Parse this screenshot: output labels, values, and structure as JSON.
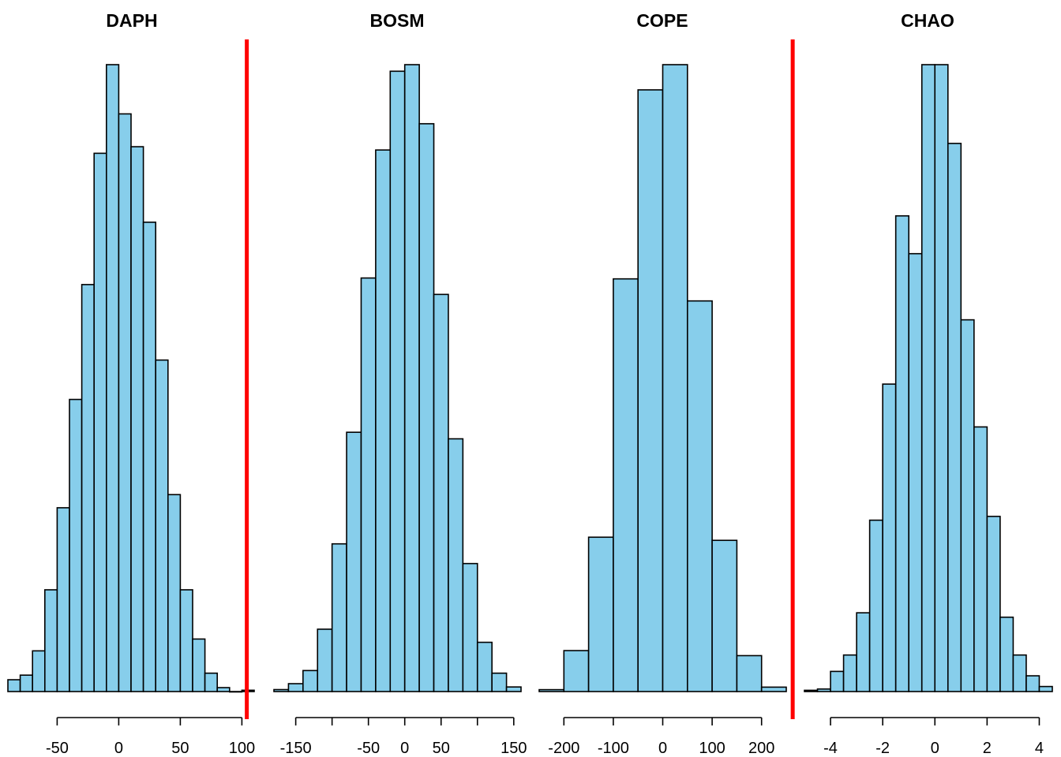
{
  "colors": {
    "bar_fill": "#87CEEB",
    "bar_stroke": "#000000",
    "ref_line": "#FF0000"
  },
  "chart_data": [
    {
      "type": "histogram",
      "title": "DAPH",
      "bin_edges": [
        -90,
        -80,
        -70,
        -60,
        -50,
        -40,
        -30,
        -20,
        -10,
        0,
        10,
        20,
        30,
        40,
        50,
        60,
        70,
        80,
        90,
        100,
        110
      ],
      "values": [
        18,
        25,
        62,
        155,
        280,
        445,
        620,
        820,
        955,
        880,
        830,
        715,
        505,
        300,
        155,
        80,
        28,
        6,
        0,
        2
      ],
      "ylim": [
        0,
        1000
      ],
      "xticks": [
        -50,
        0,
        50,
        100
      ],
      "x_axis_range": [
        -50,
        100
      ],
      "reference_line": 104
    },
    {
      "type": "histogram",
      "title": "BOSM",
      "bin_edges": [
        -180,
        -160,
        -140,
        -120,
        -100,
        -80,
        -60,
        -40,
        -20,
        0,
        20,
        40,
        60,
        80,
        100,
        120,
        140,
        160
      ],
      "values": [
        3,
        12,
        32,
        95,
        225,
        395,
        630,
        825,
        945,
        955,
        865,
        605,
        385,
        195,
        75,
        28,
        7
      ],
      "ylim": [
        0,
        1000
      ],
      "xticks": [
        -150,
        -50,
        0,
        50,
        150
      ],
      "minor_xticks": [
        -100,
        100
      ],
      "x_axis_range": [
        -150,
        150
      ],
      "reference_line": null
    },
    {
      "type": "histogram",
      "title": "COPE",
      "bin_edges": [
        -250,
        -200,
        -150,
        -100,
        -50,
        0,
        50,
        100,
        150,
        200,
        250
      ],
      "values": [
        3,
        65,
        245,
        655,
        955,
        995,
        620,
        240,
        57,
        7
      ],
      "ylim": [
        0,
        1000
      ],
      "xticks": [
        -200,
        -100,
        0,
        100,
        200
      ],
      "x_axis_range": [
        -200,
        200
      ],
      "reference_line": 263
    },
    {
      "type": "histogram",
      "title": "CHAO",
      "bin_edges": [
        -5,
        -4.5,
        -4,
        -3.5,
        -3,
        -2.5,
        -2,
        -1.5,
        -1,
        -0.5,
        0,
        0.5,
        1,
        1.5,
        2,
        2.5,
        3,
        3.5,
        4,
        4.5
      ],
      "values": [
        2,
        4,
        32,
        58,
        125,
        272,
        488,
        755,
        695,
        995,
        995,
        870,
        590,
        420,
        278,
        118,
        58,
        25,
        8
      ],
      "ylim": [
        0,
        1000
      ],
      "xticks": [
        -4,
        -2,
        0,
        2,
        4
      ],
      "x_axis_range": [
        -4,
        4
      ],
      "reference_line": null
    }
  ]
}
